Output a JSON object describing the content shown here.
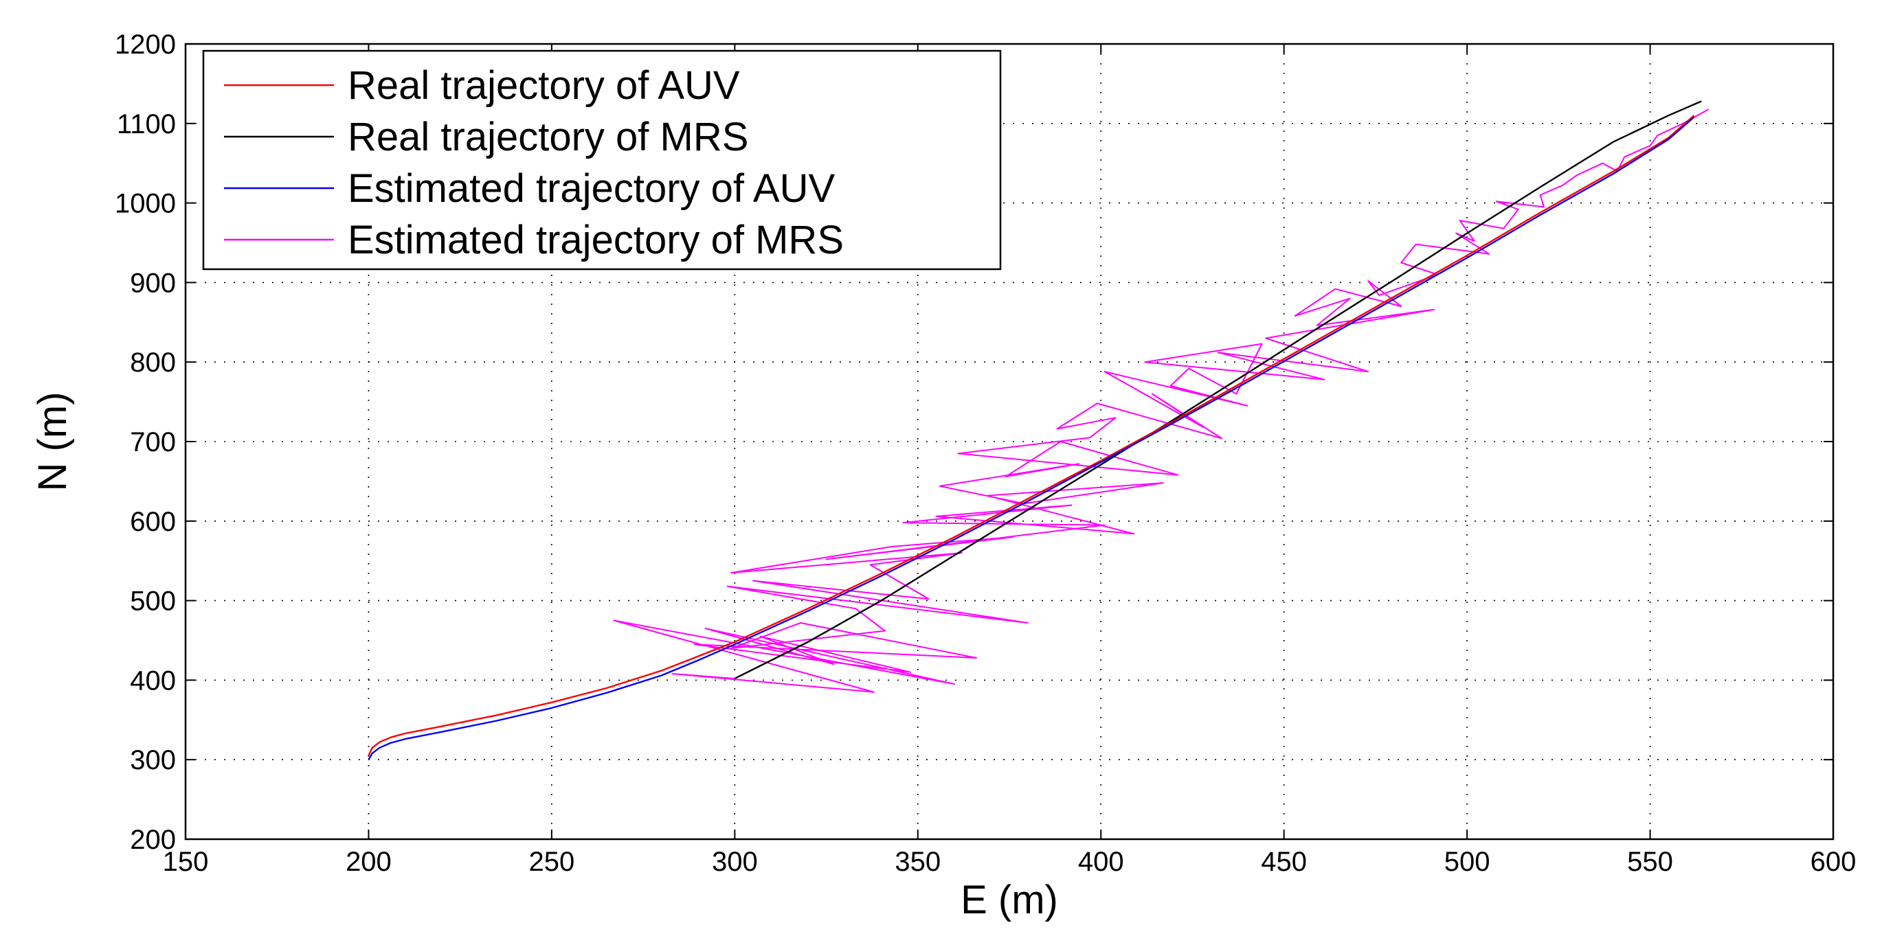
{
  "chart_data": {
    "type": "line",
    "title": "",
    "xlabel": "E (m)",
    "ylabel": "N (m)",
    "xlim": [
      150,
      600
    ],
    "ylim": [
      200,
      1200
    ],
    "xticks": [
      150,
      200,
      250,
      300,
      350,
      400,
      450,
      500,
      550,
      600
    ],
    "yticks": [
      200,
      300,
      400,
      500,
      600,
      700,
      800,
      900,
      1000,
      1100,
      1200
    ],
    "xtick_labels": [
      "150",
      "200",
      "250",
      "300",
      "350",
      "400",
      "450",
      "500",
      "550",
      "600"
    ],
    "ytick_labels": [
      "200",
      "300",
      "400",
      "500",
      "600",
      "700",
      "800",
      "900",
      "1000",
      "1100",
      "1200"
    ],
    "grid": true,
    "legend_position": "top-left",
    "series": [
      {
        "name": "Real trajectory of AUV",
        "color": "#ff0000",
        "x": [
          200,
          201,
          203,
          206,
          210,
          220,
          235,
          250,
          265,
          280,
          290,
          300,
          320,
          340,
          360,
          380,
          400,
          420,
          440,
          460,
          480,
          500,
          520,
          540,
          555,
          562
        ],
        "y": [
          305,
          315,
          322,
          328,
          333,
          342,
          356,
          372,
          390,
          412,
          430,
          448,
          490,
          534,
          580,
          628,
          676,
          726,
          778,
          830,
          882,
          934,
          988,
          1040,
          1082,
          1110
        ]
      },
      {
        "name": "Real trajectory of MRS",
        "color": "#000000",
        "x": [
          300,
          320,
          340,
          360,
          380,
          400,
          420,
          440,
          460,
          480,
          500,
          520,
          540,
          555,
          564
        ],
        "y": [
          402,
          448,
          500,
          557,
          614,
          671,
          728,
          786,
          845,
          903,
          962,
          1020,
          1077,
          1110,
          1128
        ]
      },
      {
        "name": "Estimated trajectory of AUV",
        "color": "#0000ff",
        "x": [
          200,
          201,
          203,
          206,
          210,
          220,
          235,
          250,
          265,
          280,
          290,
          300,
          320,
          340,
          360,
          380,
          400,
          420,
          440,
          460,
          480,
          500,
          520,
          540,
          555,
          562
        ],
        "y": [
          300,
          308,
          315,
          321,
          326,
          335,
          349,
          365,
          384,
          406,
          425,
          445,
          487,
          531,
          577,
          625,
          674,
          724,
          775,
          827,
          879,
          931,
          985,
          1037,
          1080,
          1108
        ]
      },
      {
        "name": "Estimated trajectory of MRS",
        "color": "#ff00ff",
        "x": [
          300,
          283,
          338,
          267,
          360,
          292,
          327,
          307,
          348,
          289,
          366,
          318,
          299,
          341,
          333,
          298,
          380,
          305,
          353,
          337,
          362,
          299,
          343,
          376,
          325,
          401,
          346,
          392,
          355,
          409,
          369,
          417,
          379,
          356,
          394,
          374,
          389,
          421,
          361,
          397,
          404,
          388,
          399,
          433,
          414,
          428,
          401,
          440,
          419,
          424,
          437,
          444,
          412,
          461,
          432,
          473,
          445,
          491,
          459,
          468,
          453,
          464,
          482,
          473,
          476,
          492,
          482,
          486,
          506,
          497,
          502,
          498,
          510,
          514,
          508,
          521,
          520,
          526,
          530,
          537,
          541,
          543,
          550,
          552,
          559,
          566
        ],
        "y": [
          402,
          408,
          385,
          475,
          395,
          465,
          420,
          455,
          410,
          445,
          428,
          472,
          440,
          462,
          490,
          518,
          472,
          525,
          502,
          545,
          560,
          535,
          568,
          580,
          552,
          595,
          598,
          620,
          606,
          584,
          632,
          648,
          622,
          644,
          672,
          656,
          700,
          658,
          685,
          705,
          730,
          716,
          748,
          704,
          760,
          718,
          788,
          745,
          770,
          792,
          760,
          823,
          800,
          778,
          812,
          788,
          830,
          866,
          846,
          880,
          858,
          892,
          870,
          902,
          884,
          910,
          925,
          948,
          936,
          962,
          952,
          978,
          968,
          992,
          1002,
          995,
          1010,
          1022,
          1035,
          1050,
          1040,
          1058,
          1072,
          1085,
          1100,
          1118
        ]
      }
    ]
  }
}
